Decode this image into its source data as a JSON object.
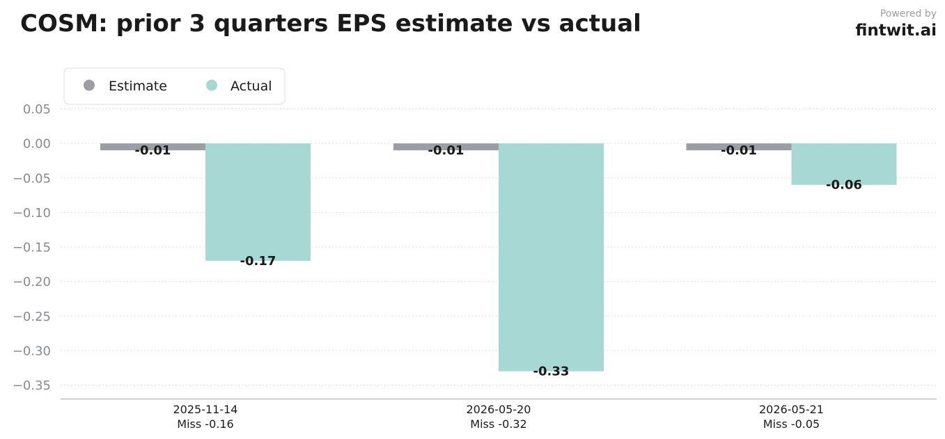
{
  "header": {
    "title": "COSM: prior 3 quarters EPS estimate vs actual",
    "powered_by": "Powered by",
    "brand": "fintwit.ai"
  },
  "chart_data": {
    "type": "bar",
    "categories": [
      "2025-11-14",
      "2026-05-20",
      "2026-05-21"
    ],
    "category_sublabels": [
      "Miss -0.16",
      "Miss -0.32",
      "Miss -0.05"
    ],
    "series": [
      {
        "name": "Estimate",
        "values": [
          -0.01,
          -0.01,
          -0.01
        ],
        "labels": [
          "-0.01",
          "-0.01",
          "-0.01"
        ],
        "color": "#9b9ea4"
      },
      {
        "name": "Actual",
        "values": [
          -0.17,
          -0.33,
          -0.06
        ],
        "labels": [
          "-0.17",
          "-0.33",
          "-0.06"
        ],
        "color": "#a8d8d3"
      }
    ],
    "yticks": [
      "0.05",
      "0.00",
      "−0.05",
      "−0.10",
      "−0.15",
      "−0.20",
      "−0.25",
      "−0.30",
      "−0.35"
    ],
    "ytick_values": [
      0.05,
      0,
      -0.05,
      -0.1,
      -0.15,
      -0.2,
      -0.25,
      -0.3,
      -0.35
    ],
    "ylim": [
      -0.37,
      0.07
    ],
    "grid": true,
    "legend_position": "top-left"
  }
}
